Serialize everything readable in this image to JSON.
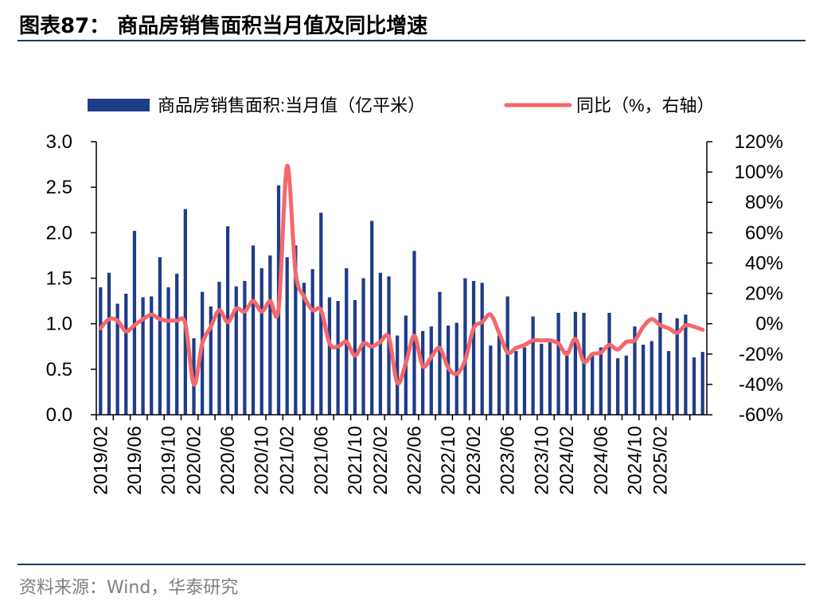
{
  "header": {
    "title": "图表87：  商品房销售面积当月值及同比增速"
  },
  "footer": {
    "source": "资料来源：Wind，华泰研究"
  },
  "colors": {
    "bar": "#1f3c88",
    "line": "#f4676b",
    "rule": "#1f3864"
  },
  "chart_data": {
    "type": "bar+line",
    "title": "商品房销售面积当月值及同比增速",
    "legend": [
      "商品房销售面积:当月值（亿平米）",
      "同比（%，右轴）"
    ],
    "legend_position": "top",
    "left_axis": {
      "ylim": [
        0,
        3.0
      ],
      "ticks": [
        "0.0",
        "0.5",
        "1.0",
        "1.5",
        "2.0",
        "2.5",
        "3.0"
      ]
    },
    "right_axis": {
      "ylim": [
        -60,
        120
      ],
      "ticks": [
        "-60%",
        "-40%",
        "-20%",
        "0%",
        "20%",
        "40%",
        "60%",
        "80%",
        "100%",
        "120%"
      ]
    },
    "x_tick_labels": [
      "2019/02",
      "2019/06",
      "2019/10",
      "2020/02",
      "2020/06",
      "2020/10",
      "2021/02",
      "2021/06",
      "2021/10",
      "2022/02",
      "2022/06",
      "2022/10",
      "2023/02",
      "2023/06",
      "2023/10",
      "2024/02",
      "2024/06",
      "2024/10",
      "2025/02"
    ],
    "categories": [
      "2019/02",
      "2019/03",
      "2019/04",
      "2019/05",
      "2019/06",
      "2019/07",
      "2019/08",
      "2019/09",
      "2019/10",
      "2019/11",
      "2019/12",
      "2020/02",
      "2020/03",
      "2020/04",
      "2020/05",
      "2020/06",
      "2020/07",
      "2020/08",
      "2020/09",
      "2020/10",
      "2020/11",
      "2020/12",
      "2021/02",
      "2021/03",
      "2021/04",
      "2021/05",
      "2021/06",
      "2021/07",
      "2021/08",
      "2021/09",
      "2021/10",
      "2021/11",
      "2021/12",
      "2022/02",
      "2022/03",
      "2022/04",
      "2022/05",
      "2022/06",
      "2022/07",
      "2022/08",
      "2022/09",
      "2022/10",
      "2022/11",
      "2022/12",
      "2023/02",
      "2023/03",
      "2023/04",
      "2023/05",
      "2023/06",
      "2023/07",
      "2023/08",
      "2023/09",
      "2023/10",
      "2023/11",
      "2023/12",
      "2024/02",
      "2024/03",
      "2024/04",
      "2024/05",
      "2024/06",
      "2024/07",
      "2024/08",
      "2024/09",
      "2024/10",
      "2024/11",
      "2024/12",
      "2025/02",
      "2025/03",
      "2025/04",
      "2025/05",
      "2025/06",
      "2025/07"
    ],
    "series": [
      {
        "name": "商品房销售面积:当月值（亿平米）",
        "axis": "left",
        "type": "bar",
        "values": [
          1.4,
          1.56,
          1.22,
          1.33,
          2.02,
          1.29,
          1.3,
          1.73,
          1.4,
          1.55,
          2.26,
          0.84,
          1.35,
          1.19,
          1.46,
          2.07,
          1.41,
          1.47,
          1.86,
          1.61,
          1.75,
          2.52,
          1.73,
          1.86,
          1.45,
          1.6,
          2.22,
          1.29,
          1.25,
          1.61,
          1.26,
          1.5,
          2.13,
          1.56,
          1.52,
          0.87,
          1.09,
          1.8,
          0.92,
          0.97,
          1.35,
          0.98,
          1.01,
          1.5,
          1.47,
          1.45,
          0.76,
          0.87,
          1.3,
          0.7,
          0.74,
          1.08,
          0.78,
          0.82,
          1.12,
          0.7,
          1.13,
          1.12,
          0.66,
          0.74,
          1.12,
          0.62,
          0.65,
          0.97,
          0.77,
          0.81,
          1.12,
          0.7,
          1.06,
          1.1,
          0.63,
          0.69
        ]
      },
      {
        "name": "同比（%，右轴）",
        "axis": "right",
        "type": "line",
        "values": [
          -3,
          3,
          2,
          -5,
          -1,
          3,
          6,
          3,
          2,
          2,
          0,
          -40,
          -13,
          -2,
          9,
          1,
          10,
          8,
          15,
          8,
          15,
          10,
          104,
          34,
          18,
          9,
          9,
          -13,
          -15,
          -12,
          -21,
          -13,
          -15,
          -12,
          -9,
          -39,
          -26,
          -8,
          -28,
          -22,
          -16,
          -29,
          -33,
          -24,
          -3,
          1,
          6,
          -6,
          -19,
          -16,
          -14,
          -11,
          -11,
          -11,
          -13,
          -20,
          -10,
          -25,
          -20,
          -19,
          -14,
          -17,
          -12,
          -11,
          -2,
          3,
          -1,
          -3,
          -6,
          -1,
          -2,
          -4
        ]
      }
    ]
  }
}
